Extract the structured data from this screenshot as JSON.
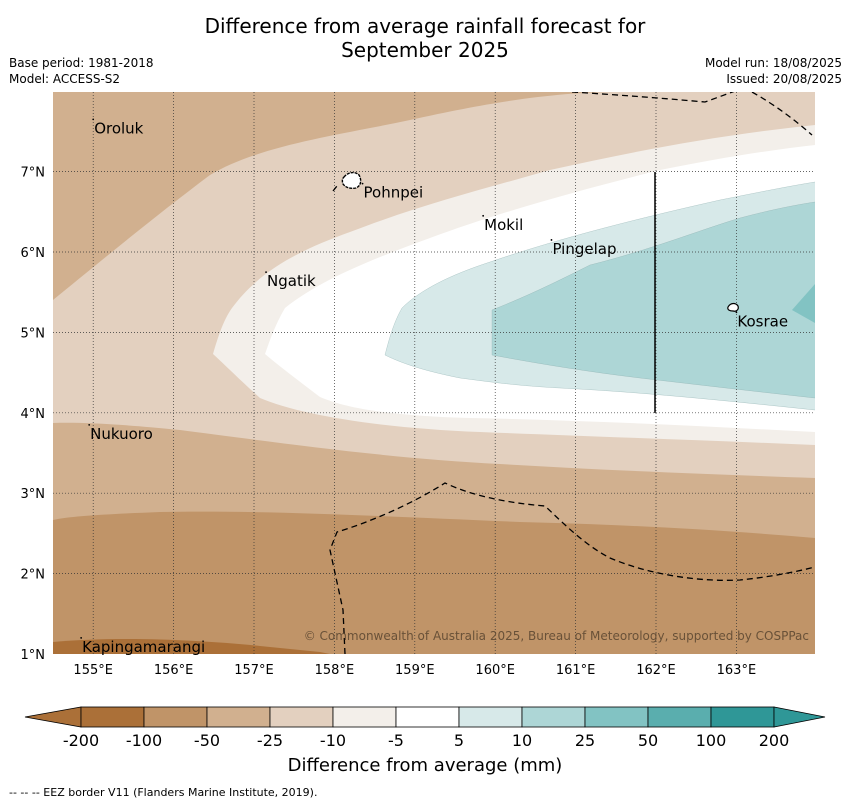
{
  "title_line1": "Difference from average rainfall forecast for",
  "title_line2": "September 2025",
  "base_period": "Base period: 1981-2018",
  "model": "Model: ACCESS-S2",
  "model_run": "Model run: 18/08/2025",
  "issued": "Issued: 20/08/2025",
  "copyright": "© Commonwealth of Australia 2025, Bureau of Meteorology, supported by COSPPac",
  "footer": "--  --  -- EEZ border V11 (Flanders Marine Institute, 2019).",
  "colorbar": {
    "title": "Difference from average (mm)",
    "ticks": [
      "-200",
      "-100",
      "-50",
      "-25",
      "-10",
      "-5",
      "5",
      "10",
      "25",
      "50",
      "100",
      "200"
    ],
    "colors": [
      "#ab7038",
      "#c09468",
      "#d1b08f",
      "#e3d0bf",
      "#f3efea",
      "#ffffff",
      "#d7e9e9",
      "#add6d6",
      "#82c3c3",
      "#5aaeae",
      "#2f9797"
    ]
  },
  "axes": {
    "x_ticks": [
      "155°E",
      "156°E",
      "157°E",
      "158°E",
      "159°E",
      "160°E",
      "161°E",
      "162°E",
      "163°E"
    ],
    "y_ticks": [
      "7°N",
      "6°N",
      "5°N",
      "4°N",
      "3°N",
      "2°N",
      "1°N"
    ]
  },
  "places": [
    {
      "name": "Oroluk",
      "lon": 155.0,
      "lat": 7.65
    },
    {
      "name": "Pohnpei",
      "lon": 158.35,
      "lat": 6.85
    },
    {
      "name": "Mokil",
      "lon": 159.85,
      "lat": 6.45
    },
    {
      "name": "Pingelap",
      "lon": 160.7,
      "lat": 6.15
    },
    {
      "name": "Ngatik",
      "lon": 157.15,
      "lat": 5.75
    },
    {
      "name": "Kosrae",
      "lon": 163.0,
      "lat": 5.25
    },
    {
      "name": "Nukuoro",
      "lon": 154.95,
      "lat": 3.85
    },
    {
      "name": "Kapingamarangi",
      "lon": 154.85,
      "lat": 1.2
    }
  ]
}
